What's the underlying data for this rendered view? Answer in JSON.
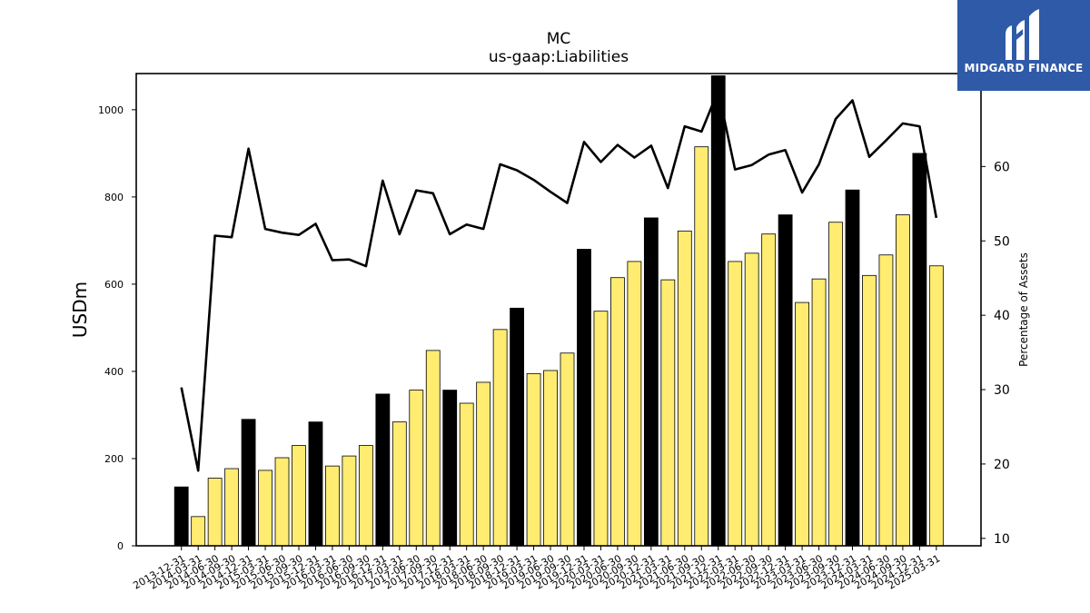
{
  "chart_data": {
    "type": "bar",
    "title": "MC",
    "subtitle": "us-gaap:Liabilities",
    "ylabel": "USDm",
    "y2label": "Percentage of Assets",
    "ylim": [
      0,
      1083
    ],
    "y2lim": [
      9,
      72.5
    ],
    "yticks": [
      0,
      200,
      400,
      600,
      800,
      1000
    ],
    "y2ticks": [
      10,
      20,
      30,
      40,
      50,
      60
    ],
    "categories": [
      "2013-12-31",
      "2014-03-31",
      "2014-06-30",
      "2014-09-30",
      "2014-12-31",
      "2015-03-31",
      "2015-06-30",
      "2015-09-30",
      "2015-12-31",
      "2016-03-31",
      "2016-06-30",
      "2016-09-30",
      "2016-12-31",
      "2017-03-31",
      "2017-06-30",
      "2017-09-30",
      "2017-12-31",
      "2018-03-31",
      "2018-06-30",
      "2018-09-30",
      "2018-12-31",
      "2019-03-31",
      "2019-06-30",
      "2019-09-30",
      "2019-12-31",
      "2020-03-31",
      "2020-06-30",
      "2020-09-30",
      "2020-12-31",
      "2021-03-31",
      "2021-06-30",
      "2021-09-30",
      "2021-12-31",
      "2022-03-31",
      "2022-06-30",
      "2022-09-30",
      "2022-12-31",
      "2023-03-31",
      "2023-06-30",
      "2023-09-30",
      "2023-12-31",
      "2024-03-31",
      "2024-06-30",
      "2024-09-30",
      "2024-12-31",
      "2025-03-31"
    ],
    "series": [
      {
        "kind": "bar",
        "values": [
          135,
          67,
          155,
          177,
          290,
          173,
          202,
          230,
          284,
          183,
          206,
          230,
          348,
          284,
          357,
          448,
          357,
          327,
          375,
          496,
          545,
          395,
          402,
          442,
          680,
          538,
          615,
          652,
          752,
          610,
          722,
          915,
          1078,
          652,
          671,
          715,
          759,
          558,
          612,
          742,
          816,
          620,
          667,
          759,
          900,
          642
        ],
        "highlight_color": "#000000",
        "base_color": "#ffec70",
        "highlight_indices": [
          0,
          4,
          8,
          12,
          16,
          20,
          24,
          28,
          32,
          36,
          40,
          44
        ]
      },
      {
        "kind": "line",
        "axis": "right",
        "color": "#000000",
        "values": [
          30.3,
          19.1,
          50.7,
          50.5,
          62.4,
          51.6,
          51.1,
          50.8,
          52.3,
          47.4,
          47.5,
          46.6,
          58.1,
          50.9,
          56.8,
          56.4,
          50.9,
          52.2,
          51.6,
          60.3,
          59.5,
          58.2,
          56.6,
          55.1,
          63.3,
          60.6,
          62.9,
          61.2,
          62.8,
          57.1,
          65.4,
          64.7,
          70.2,
          59.6,
          60.2,
          61.6,
          62.2,
          56.5,
          60.3,
          66.4,
          68.9,
          61.3,
          63.5,
          65.8,
          65.4,
          53.1
        ]
      }
    ],
    "grid": false,
    "legend": "none"
  },
  "logo": {
    "text": "MIDGARD FINANCE",
    "bg_color": "#2f5aa8",
    "text_color": "#ffffff"
  }
}
